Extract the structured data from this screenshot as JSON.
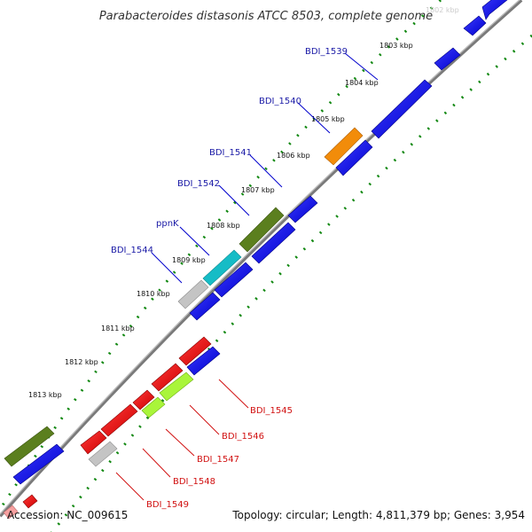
{
  "title": "Parabacteroides distasonis ATCC 8503, complete genome",
  "footer": {
    "accession": "Accession: NC_009615",
    "topology": "Topology: circular; Length: 4,811,379 bp; Genes: 3,954"
  },
  "colors": {
    "blue": "#0000ee",
    "red": "#ee0000",
    "olive": "#5b7f1e",
    "cyan": "#16bcc6",
    "orange": "#f28c0a",
    "gray": "#c4c4c4",
    "lime": "#a9f53a",
    "pink": "#f6a0a0",
    "dot_green": "#118811",
    "backbone": "#777777"
  },
  "ticks": [
    {
      "label": "1802 kbp",
      "faint": true
    },
    {
      "label": "1803 kbp"
    },
    {
      "label": "1804 kbp"
    },
    {
      "label": "1805 kbp"
    },
    {
      "label": "1806 kbp"
    },
    {
      "label": "1807 kbp"
    },
    {
      "label": "1808 kbp"
    },
    {
      "label": "1809 kbp"
    },
    {
      "label": "1810 kbp"
    },
    {
      "label": "1811 kbp"
    },
    {
      "label": "1812 kbp"
    },
    {
      "label": "1813 kbp"
    }
  ],
  "labels_blue": [
    "BDI_1539",
    "BDI_1540",
    "BDI_1541",
    "BDI_1542",
    "ppnK",
    "BDI_1544"
  ],
  "labels_red": [
    "BDI_1545",
    "BDI_1546",
    "BDI_1547",
    "BDI_1548",
    "BDI_1549"
  ]
}
